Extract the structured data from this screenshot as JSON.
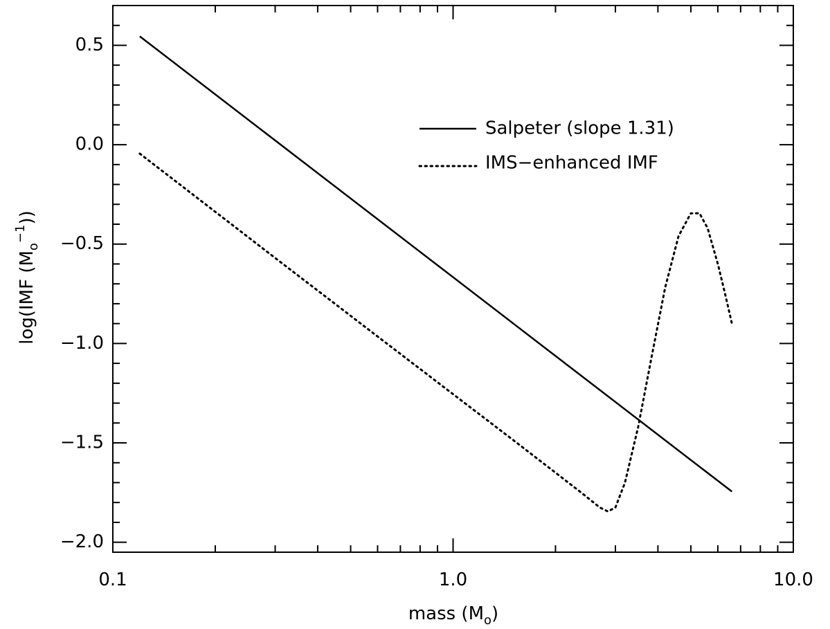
{
  "chart_data": {
    "type": "line",
    "title": "",
    "xlabel": {
      "main": "mass (M",
      "sub": "o",
      "close": ")"
    },
    "ylabel": {
      "main": "log(IMF (M",
      "sub": "o",
      "sup": "−1",
      "close": "))"
    },
    "xscale": "log",
    "xlim": [
      0.1,
      10.0
    ],
    "ylim": [
      -2.05,
      0.7
    ],
    "xticks": [
      {
        "value": 0.1,
        "label": "0.1"
      },
      {
        "value": 1.0,
        "label": "1.0"
      },
      {
        "value": 10.0,
        "label": "10.0"
      }
    ],
    "yticks": [
      {
        "value": 0.5,
        "label": "0.5"
      },
      {
        "value": 0.0,
        "label": "0.0"
      },
      {
        "value": -0.5,
        "label": "−0.5"
      },
      {
        "value": -1.0,
        "label": "−1.0"
      },
      {
        "value": -1.5,
        "label": "−1.5"
      },
      {
        "value": -2.0,
        "label": "−2.0"
      }
    ],
    "grid": false,
    "legend_position": "upper-right",
    "series": [
      {
        "name": "Salpeter (slope 1.31)",
        "style": "solid",
        "color": "#000000",
        "x": [
          0.12,
          6.6
        ],
        "y": [
          0.545,
          -1.745
        ]
      },
      {
        "name": "IMS−enhanced IMF",
        "style": "dotted",
        "color": "#000000",
        "x": [
          0.12,
          0.3,
          0.6,
          1.0,
          1.5,
          2.0,
          2.4,
          2.7,
          2.85,
          3.0,
          3.2,
          3.5,
          3.8,
          4.2,
          4.6,
          5.0,
          5.3,
          5.6,
          6.0,
          6.3,
          6.6
        ],
        "y": [
          -0.045,
          -0.57,
          -0.965,
          -1.255,
          -1.485,
          -1.65,
          -1.755,
          -1.825,
          -1.845,
          -1.825,
          -1.7,
          -1.42,
          -1.1,
          -0.72,
          -0.46,
          -0.345,
          -0.345,
          -0.42,
          -0.6,
          -0.75,
          -0.9
        ]
      }
    ]
  }
}
